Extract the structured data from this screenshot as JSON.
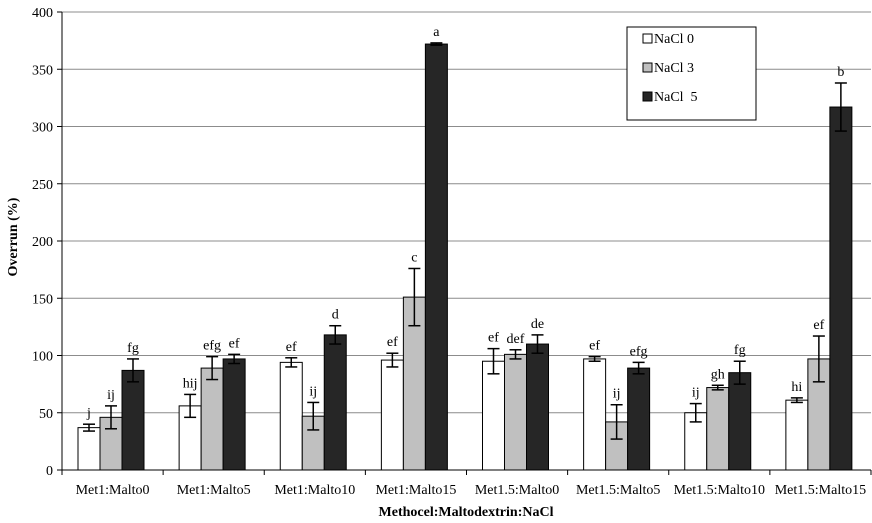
{
  "chart_data": {
    "type": "bar",
    "xlabel": "Methocel:Maltodextrin:NaCl",
    "ylabel": "Overrun (%)",
    "ylim": [
      0,
      400
    ],
    "yticks": [
      0,
      50,
      100,
      150,
      200,
      250,
      300,
      350,
      400
    ],
    "grid": "horizontal",
    "legend_position": "top-right",
    "categories": [
      "Met1:Malto0",
      "Met1:Malto5",
      "Met1:Malto10",
      "Met1:Malto15",
      "Met1.5:Malto0",
      "Met1.5:Malto5",
      "Met1.5:Malto10",
      "Met1.5:Malto15"
    ],
    "series": [
      {
        "name": "NaCl 0",
        "color": "#ffffff",
        "values": [
          37,
          56,
          94,
          96,
          95,
          97,
          50,
          61
        ],
        "errors": [
          3,
          10,
          4,
          6,
          11,
          2,
          8,
          2
        ],
        "labels": [
          "j",
          "hij",
          "ef",
          "ef",
          "ef",
          "ef",
          "ij",
          "hi"
        ]
      },
      {
        "name": "NaCl 3",
        "color": "#c0c0c0",
        "values": [
          46,
          89,
          47,
          151,
          101,
          42,
          72,
          97
        ],
        "errors": [
          10,
          10,
          12,
          25,
          4,
          15,
          2,
          20
        ],
        "labels": [
          "ij",
          "efg",
          "ij",
          "c",
          "def",
          "ij",
          "gh",
          "ef"
        ]
      },
      {
        "name": "NaCl  5",
        "color": "#262626",
        "values": [
          87,
          97,
          118,
          372,
          110,
          89,
          85,
          317
        ],
        "errors": [
          10,
          4,
          8,
          1,
          8,
          5,
          10,
          21
        ],
        "labels": [
          "fg",
          "ef",
          "d",
          "a",
          "de",
          "efg",
          "fg",
          "b"
        ]
      }
    ]
  }
}
